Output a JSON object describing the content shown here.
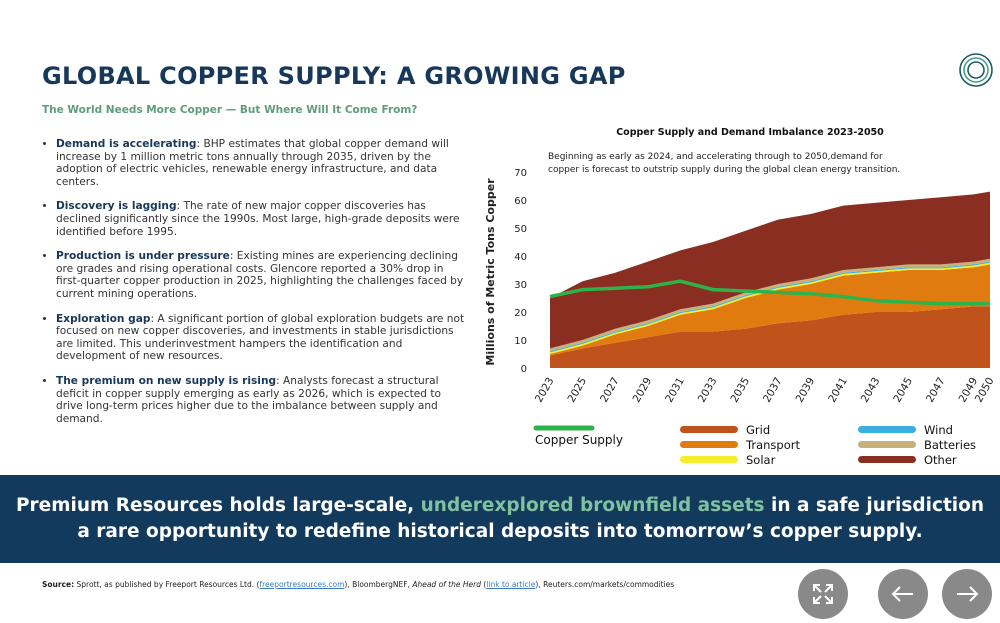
{
  "header": {
    "title": "GLOBAL COPPER SUPPLY: A GROWING GAP",
    "subtitle": "The World Needs More Copper — But Where Will It Come From?"
  },
  "bullets": [
    {
      "lead": "Demand is accelerating",
      "text": ": BHP estimates that  global copper demand will increase by 1 million metric tons annually through 2035, driven by the adoption of electric vehicles, renewable energy infrastructure, and data centers."
    },
    {
      "lead": "Discovery is lagging",
      "text": ": The rate of new major copper discoveries has declined significantly since the 1990s. Most large, high-grade deposits were identified before 1995."
    },
    {
      "lead": "Production is under pressure",
      "text": ": Existing mines are experiencing declining ore grades and rising operational costs.  Glencore reported a 30% drop in first-quarter copper production in 2025, highlighting the challenges faced by current mining operations."
    },
    {
      "lead": "Exploration gap",
      "text": ": A significant portion of global exploration budgets are not focused on new copper discoveries, and investments in stable jurisdictions are limited. This underinvestment hampers the identification and development of new resources."
    },
    {
      "lead": "The premium on new supply is rising",
      "text": ": Analysts forecast a structural deficit in copper supply emerging as early as 2026, which is expected to drive long-term prices higher due to the imbalance between supply and demand."
    }
  ],
  "chart": {
    "type": "stacked-area",
    "title": "Copper Supply and Demand Imbalance 2023-2050",
    "annotation": [
      "Beginning as early as 2024, and accelerating through to 2050,demand for",
      "copper is forecast to outstrip supply during the global clean energy transition."
    ],
    "ylabel": "Millions of Metric Tons Copper",
    "x": [
      2023,
      2025,
      2027,
      2029,
      2031,
      2033,
      2035,
      2037,
      2039,
      2041,
      2043,
      2045,
      2047,
      2049,
      2050
    ],
    "xlim": [
      2023,
      2050
    ],
    "xticks": [
      2023,
      2025,
      2027,
      2029,
      2031,
      2033,
      2035,
      2037,
      2039,
      2041,
      2043,
      2045,
      2047,
      2049,
      2050
    ],
    "ylim": [
      0,
      70
    ],
    "yticks": [
      0,
      10,
      20,
      30,
      40,
      50,
      60,
      70
    ],
    "series": [
      {
        "name": "Grid",
        "color": "#c0531c",
        "values": [
          4.5,
          7,
          9,
          11,
          13,
          13,
          14,
          16,
          17,
          19,
          20,
          20,
          21,
          22,
          22
        ]
      },
      {
        "name": "Transport",
        "color": "#e07b10",
        "values": [
          0.5,
          1,
          3,
          4,
          6,
          8,
          11,
          12,
          13,
          14,
          14,
          15,
          14,
          14,
          15
        ]
      },
      {
        "name": "Solar",
        "color": "#f5ee2a",
        "values": [
          0.6,
          0.6,
          0.6,
          0.6,
          0.6,
          0.6,
          0.6,
          0.6,
          0.6,
          0.6,
          0.6,
          0.6,
          0.6,
          0.6,
          0.6
        ]
      },
      {
        "name": "Wind",
        "color": "#3ab0e0",
        "values": [
          0.4,
          0.4,
          0.4,
          0.4,
          0.4,
          0.4,
          0.4,
          0.4,
          0.4,
          0.4,
          0.4,
          0.4,
          0.4,
          0.4,
          0.4
        ]
      },
      {
        "name": "Batteries",
        "color": "#c8b07a",
        "values": [
          1,
          1,
          1,
          1,
          1,
          1,
          1,
          1,
          1,
          1,
          1,
          1,
          1,
          1,
          1
        ]
      },
      {
        "name": "Other",
        "color": "#8b2e22",
        "values": [
          18,
          21,
          20,
          21,
          21,
          22,
          22,
          23,
          23,
          23,
          23,
          23,
          24,
          24,
          24
        ]
      }
    ],
    "line": {
      "name": "Copper Supply",
      "color": "#2db34a",
      "values": [
        25.5,
        28,
        28.5,
        29,
        31,
        28,
        27.5,
        27,
        26.5,
        25.5,
        24,
        23.5,
        23,
        23,
        23
      ]
    }
  },
  "banner": {
    "line1a": "Premium Resources holds large-scale, ",
    "line1b": "underexplored brownfield assets",
    "line1c": " in a safe jurisdiction",
    "line2": "a rare opportunity to redefine historical deposits into tomorrow’s copper supply."
  },
  "source": {
    "label": "Source:",
    "a": " Sprott, as published by Freeport Resources Ltd. (",
    "link1": "freeportresources.com",
    "b": "),  BloombergNEF, ",
    "italic": "Ahead of the Herd",
    "c": " (",
    "link2": "link to article",
    "d": "), Reuters.com/markets/commodities"
  }
}
